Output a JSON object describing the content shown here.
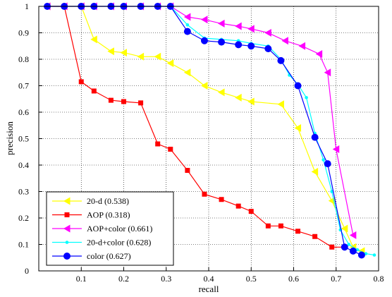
{
  "chart_data": {
    "type": "line",
    "xlabel": "recall",
    "ylabel": "precision",
    "xlim": [
      0,
      0.8
    ],
    "ylim": [
      0,
      1
    ],
    "xticks": [
      "0.1",
      "0.2",
      "0.3",
      "0.4",
      "0.5",
      "0.6",
      "0.7",
      "0.8"
    ],
    "yticks": [
      "0",
      "0.1",
      "0.2",
      "0.3",
      "0.4",
      "0.5",
      "0.6",
      "0.7",
      "0.8",
      "0.9",
      "1"
    ],
    "grid": "on",
    "legend_position": "bottom-left",
    "series": [
      {
        "name": "20-d (0.538)",
        "color": "#ffff00",
        "marker": "triangle-left",
        "points": [
          [
            0.02,
            1.0
          ],
          [
            0.06,
            1.0
          ],
          [
            0.1,
            1.0
          ],
          [
            0.13,
            0.875
          ],
          [
            0.17,
            0.83
          ],
          [
            0.2,
            0.825
          ],
          [
            0.24,
            0.81
          ],
          [
            0.28,
            0.81
          ],
          [
            0.31,
            0.785
          ],
          [
            0.35,
            0.75
          ],
          [
            0.39,
            0.7
          ],
          [
            0.43,
            0.675
          ],
          [
            0.47,
            0.655
          ],
          [
            0.5,
            0.64
          ],
          [
            0.57,
            0.63
          ],
          [
            0.61,
            0.54
          ],
          [
            0.65,
            0.375
          ],
          [
            0.69,
            0.265
          ],
          [
            0.72,
            0.16
          ],
          [
            0.74,
            0.09
          ],
          [
            0.76,
            0.075
          ]
        ]
      },
      {
        "name": "AOP (0.318)",
        "color": "#ff0000",
        "marker": "square",
        "points": [
          [
            0.02,
            1.0
          ],
          [
            0.06,
            1.0
          ],
          [
            0.1,
            0.715
          ],
          [
            0.13,
            0.68
          ],
          [
            0.17,
            0.645
          ],
          [
            0.2,
            0.64
          ],
          [
            0.24,
            0.635
          ],
          [
            0.28,
            0.48
          ],
          [
            0.31,
            0.46
          ],
          [
            0.35,
            0.38
          ],
          [
            0.39,
            0.29
          ],
          [
            0.43,
            0.27
          ],
          [
            0.47,
            0.245
          ],
          [
            0.5,
            0.225
          ],
          [
            0.54,
            0.17
          ],
          [
            0.57,
            0.17
          ],
          [
            0.61,
            0.15
          ],
          [
            0.65,
            0.13
          ],
          [
            0.69,
            0.09
          ],
          [
            0.72,
            0.09
          ]
        ]
      },
      {
        "name": "AOP+color (0.661)",
        "color": "#ff00ff",
        "marker": "triangle-left",
        "points": [
          [
            0.02,
            1.0
          ],
          [
            0.06,
            1.0
          ],
          [
            0.1,
            1.0
          ],
          [
            0.13,
            1.0
          ],
          [
            0.17,
            1.0
          ],
          [
            0.2,
            1.0
          ],
          [
            0.24,
            1.0
          ],
          [
            0.28,
            1.0
          ],
          [
            0.31,
            1.0
          ],
          [
            0.35,
            0.96
          ],
          [
            0.39,
            0.95
          ],
          [
            0.43,
            0.935
          ],
          [
            0.47,
            0.925
          ],
          [
            0.5,
            0.915
          ],
          [
            0.54,
            0.9
          ],
          [
            0.58,
            0.87
          ],
          [
            0.62,
            0.85
          ],
          [
            0.66,
            0.82
          ],
          [
            0.68,
            0.75
          ],
          [
            0.7,
            0.46
          ],
          [
            0.74,
            0.135
          ]
        ]
      },
      {
        "name": "20-d+color (0.628)",
        "color": "#00ffff",
        "marker": "dot",
        "points": [
          [
            0.02,
            1.0
          ],
          [
            0.06,
            1.0
          ],
          [
            0.1,
            1.0
          ],
          [
            0.13,
            1.0
          ],
          [
            0.17,
            1.0
          ],
          [
            0.2,
            1.0
          ],
          [
            0.24,
            1.0
          ],
          [
            0.28,
            1.0
          ],
          [
            0.31,
            1.0
          ],
          [
            0.35,
            0.93
          ],
          [
            0.39,
            0.88
          ],
          [
            0.43,
            0.875
          ],
          [
            0.47,
            0.87
          ],
          [
            0.5,
            0.86
          ],
          [
            0.54,
            0.85
          ],
          [
            0.57,
            0.8
          ],
          [
            0.59,
            0.74
          ],
          [
            0.61,
            0.705
          ],
          [
            0.63,
            0.655
          ],
          [
            0.65,
            0.52
          ],
          [
            0.67,
            0.42
          ],
          [
            0.69,
            0.3
          ],
          [
            0.71,
            0.155
          ],
          [
            0.73,
            0.1
          ],
          [
            0.75,
            0.08
          ],
          [
            0.77,
            0.065
          ],
          [
            0.79,
            0.06
          ]
        ]
      },
      {
        "name": "color (0.627)",
        "color": "#0000ff",
        "marker": "circle",
        "points": [
          [
            0.02,
            1.0
          ],
          [
            0.06,
            1.0
          ],
          [
            0.1,
            1.0
          ],
          [
            0.13,
            1.0
          ],
          [
            0.17,
            1.0
          ],
          [
            0.2,
            1.0
          ],
          [
            0.24,
            1.0
          ],
          [
            0.28,
            1.0
          ],
          [
            0.31,
            1.0
          ],
          [
            0.35,
            0.905
          ],
          [
            0.39,
            0.87
          ],
          [
            0.43,
            0.865
          ],
          [
            0.47,
            0.855
          ],
          [
            0.5,
            0.85
          ],
          [
            0.54,
            0.84
          ],
          [
            0.57,
            0.795
          ],
          [
            0.61,
            0.7
          ],
          [
            0.65,
            0.505
          ],
          [
            0.68,
            0.405
          ],
          [
            0.72,
            0.09
          ],
          [
            0.74,
            0.075
          ],
          [
            0.76,
            0.06
          ]
        ]
      }
    ]
  }
}
